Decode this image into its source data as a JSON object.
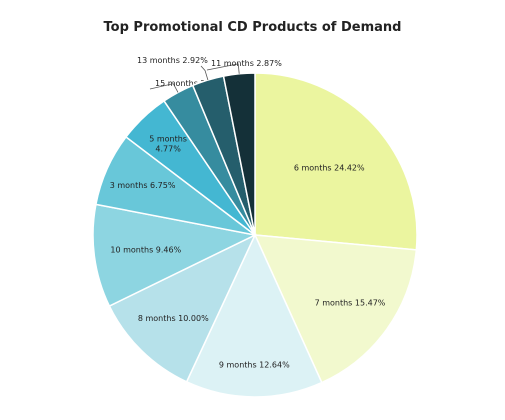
{
  "chart_data": {
    "type": "pie",
    "title": "Top Promotional CD Products of Demand",
    "slices": [
      {
        "label": "6 months",
        "value": 24.42,
        "pct": "24.42%",
        "color": "#ebf59f"
      },
      {
        "label": "7 months",
        "value": 15.47,
        "pct": "15.47%",
        "color": "#f2f9ce"
      },
      {
        "label": "9 months",
        "value": 12.64,
        "pct": "12.64%",
        "color": "#dcf2f5"
      },
      {
        "label": "8 months",
        "value": 10.0,
        "pct": "10.00%",
        "color": "#b6e1ea"
      },
      {
        "label": "10 months",
        "value": 9.46,
        "pct": "9.46%",
        "color": "#8dd5e1"
      },
      {
        "label": "3 months",
        "value": 6.75,
        "pct": "6.75%",
        "color": "#68c7d9"
      },
      {
        "label": "5 months",
        "value": 4.77,
        "pct": "4.77%",
        "color": "#44b7d2"
      },
      {
        "label": "15 months",
        "value": 2.96,
        "pct": "2.96%",
        "color": "#368c9f"
      },
      {
        "label": "13 months",
        "value": 2.92,
        "pct": "2.92%",
        "color": "#255e6c"
      },
      {
        "label": "11 months",
        "value": 2.87,
        "pct": "2.87%",
        "color": "#143038"
      }
    ]
  }
}
